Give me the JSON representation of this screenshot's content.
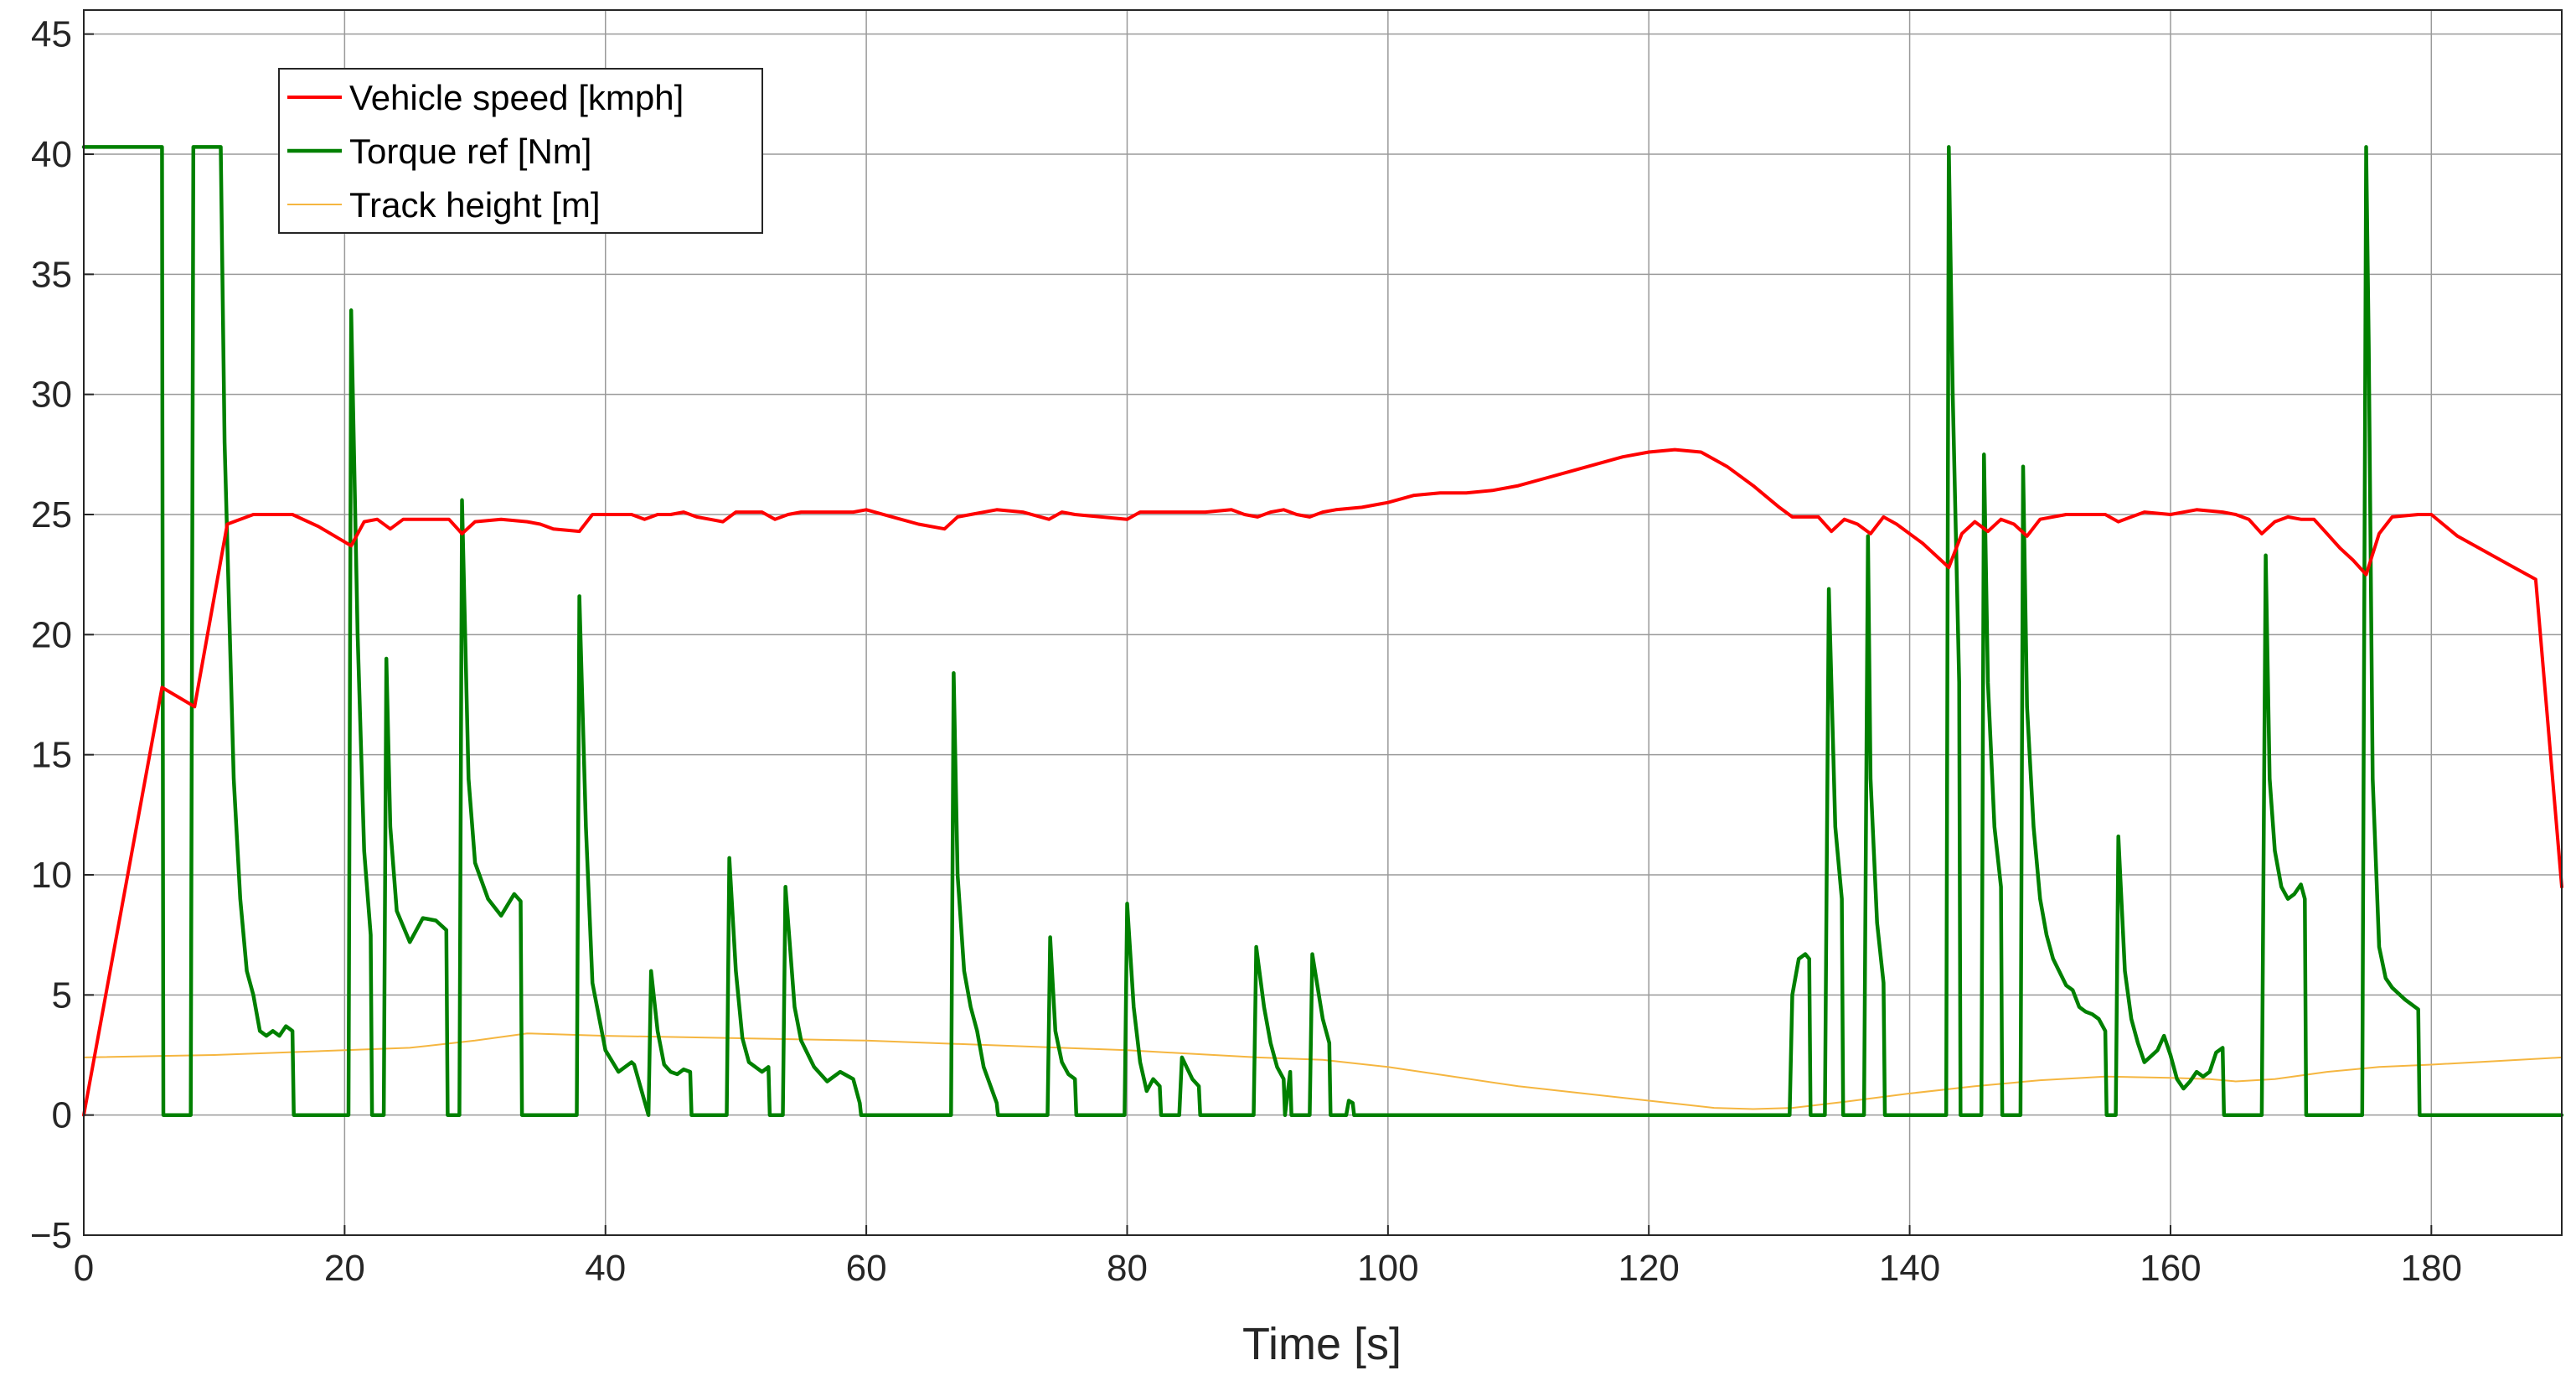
{
  "chart_data": {
    "type": "line",
    "xlabel": "Time [s]",
    "ylabel": "",
    "xlim": [
      0,
      190
    ],
    "ylim": [
      -5,
      46
    ],
    "xticks": [
      0,
      20,
      40,
      60,
      80,
      100,
      120,
      140,
      160,
      180
    ],
    "yticks": [
      -5,
      0,
      5,
      10,
      15,
      20,
      25,
      30,
      35,
      40,
      45
    ],
    "grid": true,
    "legend_position": "top-left",
    "series": [
      {
        "name": "Vehicle speed [kmph]",
        "color": "#ff0000",
        "x": [
          0,
          6,
          8.5,
          11,
          13,
          16,
          18,
          20.5,
          21.5,
          22.5,
          23.5,
          24.5,
          26,
          28,
          29,
          30,
          32,
          34,
          35,
          36,
          38,
          39,
          40,
          42,
          43,
          44,
          45,
          46,
          47,
          48,
          49,
          50,
          52,
          53,
          54,
          55,
          56,
          57,
          58,
          59,
          60,
          62,
          64,
          66,
          67,
          68,
          70,
          72,
          74,
          75,
          76,
          78,
          80,
          81,
          84,
          86,
          88,
          89,
          90,
          91,
          92,
          93,
          94,
          95,
          96,
          98,
          100,
          102,
          104,
          106,
          108,
          110,
          112,
          114,
          116,
          118,
          120,
          122,
          124,
          125,
          126,
          128,
          130,
          131,
          133,
          134,
          135,
          136,
          137,
          138,
          139,
          141,
          143,
          144,
          145,
          146,
          147,
          148,
          149,
          150,
          152,
          154,
          155,
          156,
          158,
          160,
          162,
          164,
          165,
          166,
          167,
          168,
          169,
          170,
          171,
          172,
          173,
          174,
          175,
          176,
          177,
          179,
          180,
          182,
          184,
          186,
          188,
          190
        ],
        "y": [
          0,
          17.8,
          17,
          24.6,
          25,
          25,
          24.5,
          23.7,
          24.7,
          24.8,
          24.4,
          24.8,
          24.8,
          24.8,
          24.2,
          24.7,
          24.8,
          24.7,
          24.6,
          24.4,
          24.3,
          25,
          25,
          25,
          24.8,
          25,
          25,
          25.1,
          24.9,
          24.8,
          24.7,
          25.1,
          25.1,
          24.8,
          25,
          25.1,
          25.1,
          25.1,
          25.1,
          25.1,
          25.2,
          24.9,
          24.6,
          24.4,
          24.9,
          25,
          25.2,
          25.1,
          24.8,
          25.1,
          25,
          24.9,
          24.8,
          25.1,
          25.1,
          25.1,
          25.2,
          25,
          24.9,
          25.1,
          25.2,
          25,
          24.9,
          25.1,
          25.2,
          25.3,
          25.5,
          25.8,
          25.9,
          25.9,
          26,
          26.2,
          26.5,
          26.8,
          27.1,
          27.4,
          27.6,
          27.7,
          27.6,
          27.3,
          27,
          26.2,
          25.3,
          24.9,
          24.9,
          24.3,
          24.8,
          24.6,
          24.2,
          24.9,
          24.6,
          23.8,
          22.8,
          24.2,
          24.7,
          24.3,
          24.8,
          24.6,
          24.1,
          24.8,
          25,
          25,
          25,
          24.7,
          25.1,
          25,
          25.2,
          25.1,
          25,
          24.8,
          24.2,
          24.7,
          24.9,
          24.8,
          24.8,
          24.2,
          23.6,
          23.1,
          22.5,
          24.2,
          24.9,
          25,
          25,
          24.1,
          23.5,
          22.9,
          22.3,
          9.5
        ]
      },
      {
        "name": "Torque ref [Nm]",
        "color": "#008000",
        "x": [
          0,
          6,
          6.1,
          8.2,
          8.4,
          10.5,
          10.8,
          11.5,
          12,
          12.5,
          13,
          13.5,
          14,
          14.5,
          15,
          15.5,
          16,
          16.1,
          20.3,
          20.5,
          21,
          21.5,
          22,
          22.1,
          23,
          23.2,
          23.5,
          24,
          25,
          26,
          27,
          27.8,
          27.9,
          28.8,
          29,
          29.5,
          30,
          31,
          32,
          33,
          33.5,
          33.6,
          37.8,
          38,
          38.5,
          39,
          40,
          41,
          42,
          42.2,
          43.3,
          43.5,
          44,
          44.5,
          45,
          45.5,
          46,
          46.5,
          46.6,
          49.3,
          49.5,
          50,
          50.5,
          51,
          52,
          52.5,
          52.6,
          53.6,
          53.8,
          54.5,
          55,
          56,
          57,
          58,
          59,
          59.5,
          59.6,
          66.5,
          66.7,
          67,
          67.5,
          68,
          68.5,
          69,
          70,
          70.1,
          73.9,
          74.1,
          74.5,
          75,
          75.5,
          76,
          76.1,
          79.8,
          80,
          80.5,
          81,
          81.5,
          82,
          82.5,
          82.6,
          84,
          84.2,
          85,
          85.5,
          85.6,
          89.7,
          89.9,
          90.5,
          91,
          91.5,
          92,
          92.1,
          92.5,
          92.6,
          94,
          94.2,
          95,
          95.5,
          95.6,
          96.8,
          97,
          97.3,
          97.4,
          130.8,
          131,
          131.5,
          132,
          132.3,
          132.4,
          133.5,
          133.8,
          134.3,
          134.8,
          134.9,
          136.5,
          136.8,
          137,
          137.5,
          138,
          138.1,
          142.8,
          143,
          143.3,
          143.8,
          143.9,
          145.5,
          145.7,
          146,
          146.5,
          147,
          147.1,
          148.5,
          148.7,
          149,
          149.5,
          150,
          150.5,
          151,
          152,
          152.5,
          153,
          153.5,
          154,
          154.5,
          155,
          155.1,
          155.8,
          156,
          156.5,
          157,
          157.5,
          158,
          159,
          159.5,
          160,
          160.5,
          161,
          161.5,
          162,
          162.5,
          163,
          163.5,
          164,
          164.1,
          167,
          167.3,
          167.6,
          168,
          168.5,
          169,
          169.5,
          170,
          170.3,
          170.4,
          174.7,
          175,
          175.2,
          175.5,
          176,
          176.5,
          177,
          178,
          179,
          179.1,
          190
        ],
        "y": [
          40.3,
          40.3,
          0,
          0,
          40.3,
          40.3,
          28,
          14,
          9,
          6,
          5,
          3.5,
          3.3,
          3.5,
          3.3,
          3.7,
          3.5,
          0,
          0,
          33.5,
          20,
          11,
          7.5,
          0,
          0,
          19,
          12,
          8.5,
          7.2,
          8.2,
          8.1,
          7.7,
          0,
          0,
          25.6,
          14,
          10.5,
          9,
          8.3,
          9.2,
          8.9,
          0,
          0,
          21.6,
          12,
          5.5,
          2.7,
          1.8,
          2.2,
          2.1,
          0,
          6,
          3.5,
          2.1,
          1.8,
          1.7,
          1.9,
          1.8,
          0,
          0,
          10.7,
          6,
          3.2,
          2.2,
          1.8,
          2,
          0,
          0,
          9.5,
          4.5,
          3.1,
          2,
          1.4,
          1.8,
          1.5,
          0.5,
          0,
          0,
          18.4,
          10,
          6,
          4.5,
          3.5,
          2,
          0.5,
          0,
          0,
          7.4,
          3.5,
          2.2,
          1.7,
          1.5,
          0,
          0,
          8.8,
          4.5,
          2.2,
          1,
          1.5,
          1.2,
          0,
          0,
          2.4,
          1.5,
          1.2,
          0,
          0,
          7,
          4.5,
          3,
          2,
          1.5,
          0,
          1.8,
          0,
          0,
          6.7,
          4,
          3,
          0,
          0,
          0.6,
          0.5,
          0,
          0,
          5,
          6.5,
          6.7,
          6.5,
          0,
          0,
          21.9,
          12,
          9,
          0,
          0,
          24.1,
          14,
          8,
          5.5,
          0,
          0,
          40.3,
          30,
          18,
          0,
          0,
          27.5,
          18,
          12,
          9.5,
          0,
          0,
          27,
          17,
          12,
          9,
          7.5,
          6.5,
          5.4,
          5.2,
          4.5,
          4.3,
          4.2,
          4,
          3.5,
          0,
          0,
          11.6,
          6,
          4,
          3,
          2.2,
          2.7,
          3.3,
          2.5,
          1.5,
          1.1,
          1.4,
          1.8,
          1.6,
          1.8,
          2.6,
          2.8,
          0,
          0,
          23.3,
          14,
          11,
          9.5,
          9,
          9.2,
          9.6,
          9,
          0,
          0,
          40.3,
          32,
          14,
          7,
          5.7,
          5.3,
          4.8,
          4.4,
          0,
          0
        ],
        "linewidth": 4.5
      },
      {
        "name": "Track height [m]",
        "color": "#f5b640",
        "x": [
          0,
          10,
          20,
          25,
          30,
          34,
          40,
          50,
          60,
          70,
          80,
          90,
          95,
          100,
          105,
          110,
          115,
          120,
          125,
          128,
          131,
          135,
          140,
          145,
          150,
          155,
          160,
          163,
          165,
          168,
          172,
          176,
          180,
          185,
          190
        ],
        "y": [
          2.4,
          2.5,
          2.7,
          2.8,
          3.1,
          3.4,
          3.3,
          3.2,
          3.1,
          2.9,
          2.7,
          2.4,
          2.3,
          2,
          1.6,
          1.2,
          0.9,
          0.6,
          0.3,
          0.25,
          0.3,
          0.55,
          0.9,
          1.2,
          1.45,
          1.6,
          1.55,
          1.5,
          1.4,
          1.5,
          1.8,
          2,
          2.1,
          2.25,
          2.4
        ],
        "linewidth": 2
      }
    ]
  }
}
